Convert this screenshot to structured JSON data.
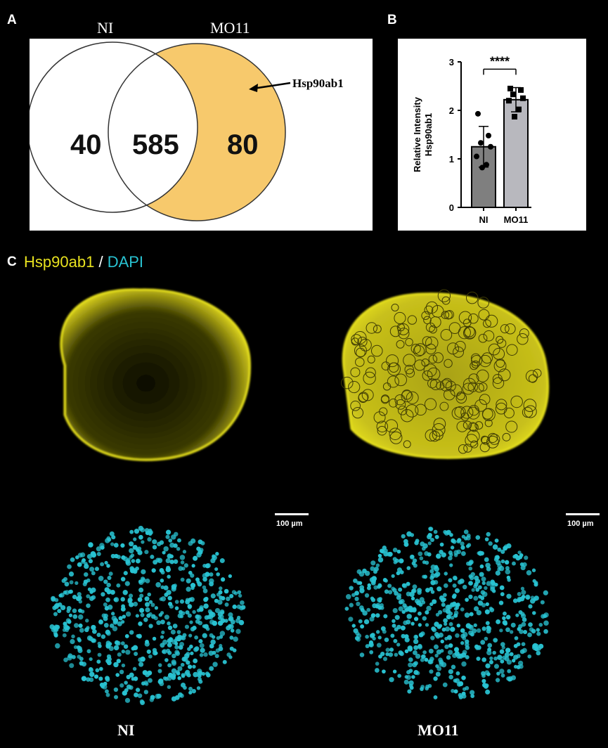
{
  "panels": {
    "a": "A",
    "b": "B",
    "c": "C"
  },
  "venn": {
    "set_left_label": "NI",
    "set_right_label": "MO11",
    "only_left": "40",
    "both": "585",
    "only_right": "80",
    "annotation": "Hsp90ab1",
    "colors": {
      "left_fill": "#ffffff",
      "right_only_fill": "#f7c96c",
      "stroke": "#333333"
    }
  },
  "chart_data": {
    "type": "bar",
    "categories": [
      "NI",
      "MO11"
    ],
    "values": [
      1.25,
      2.22
    ],
    "error": [
      0.42,
      0.25
    ],
    "points": [
      [
        1.93,
        1.48,
        1.33,
        1.25,
        1.05,
        0.88,
        0.82
      ],
      [
        2.45,
        2.42,
        2.33,
        2.25,
        2.2,
        2.02,
        1.87
      ]
    ],
    "xlabel": "",
    "ylabel": "Relative Intensity\nHsp90ab1",
    "ylabel_lines": [
      "Relative Intensity",
      "Hsp90ab1"
    ],
    "ylim": [
      0,
      3
    ],
    "yticks": [
      "0",
      "1",
      "2",
      "3"
    ],
    "significance": "****",
    "colors": {
      "NI": "#7f7f7f",
      "MO11": "#b8b8be"
    }
  },
  "micrographs": {
    "stain_label": "Hsp90ab1",
    "separator": "/",
    "counter_stain_label": "DAPI",
    "scale_label": "100 µm",
    "conditions": [
      "NI",
      "MO11"
    ],
    "colors": {
      "hsp": "#e8e21f",
      "dapi": "#29c3d2"
    }
  }
}
